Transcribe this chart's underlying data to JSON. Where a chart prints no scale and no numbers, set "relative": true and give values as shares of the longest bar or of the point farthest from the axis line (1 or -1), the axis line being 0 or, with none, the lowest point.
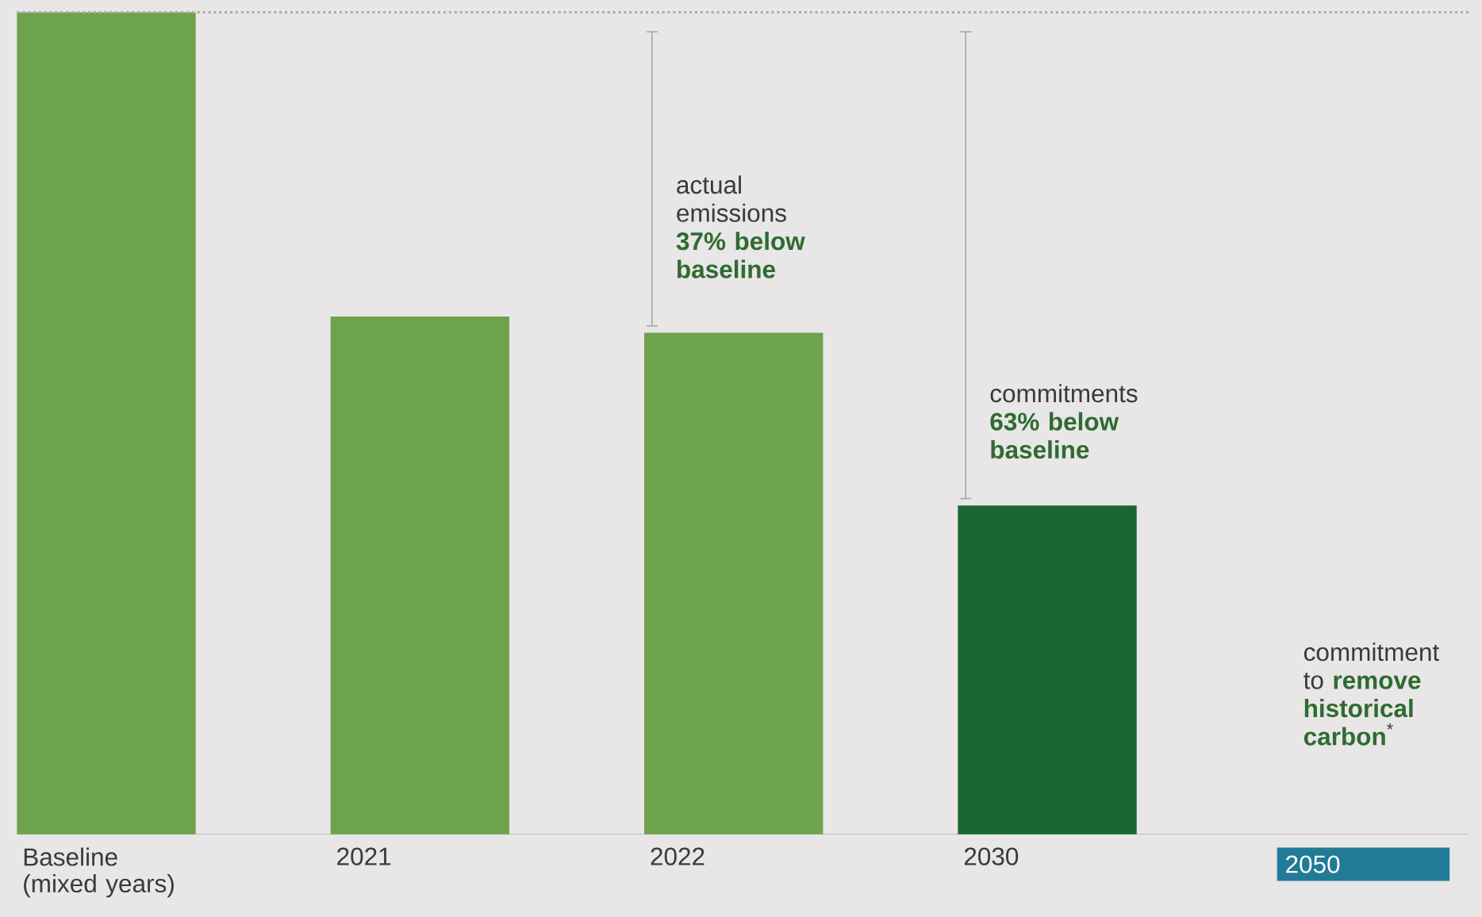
{
  "chart_data": {
    "type": "bar",
    "relative": true,
    "categories": [
      "Baseline (mixed years)",
      "2021",
      "2022",
      "2030",
      "2050"
    ],
    "values": [
      1,
      0.63,
      0.61,
      0.4,
      null
    ],
    "colors": [
      "#6da34d",
      "#6da34d",
      "#6da34d",
      "#1a6634",
      null
    ],
    "ref_lines": [
      {
        "axis": "y",
        "value": 1,
        "color": "#aaaaaa",
        "line_style": "dotted"
      }
    ],
    "annotations": [
      "actual emissions **37% below baseline**",
      "commitments **63% below baseline**",
      "commitment to **remove historical carbon**$^{*}$"
    ]
  }
}
